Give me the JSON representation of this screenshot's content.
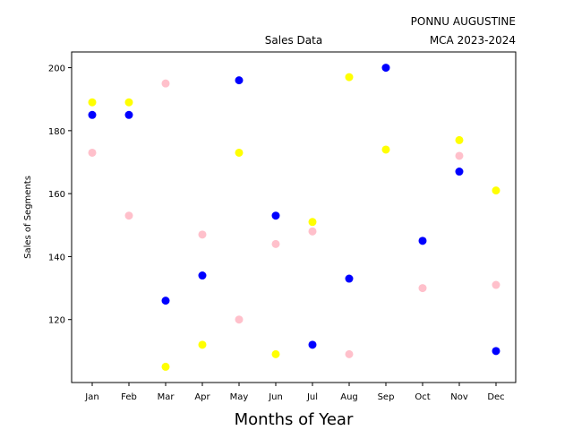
{
  "chart_data": {
    "type": "scatter",
    "title": "Sales Data",
    "title_right": [
      "PONNU AUGUSTINE",
      "MCA 2023-2024"
    ],
    "xlabel": "Months of Year",
    "ylabel": "Sales of Segments",
    "categories": [
      "Jan",
      "Feb",
      "Mar",
      "Apr",
      "May",
      "Jun",
      "Jul",
      "Aug",
      "Sep",
      "Oct",
      "Nov",
      "Dec"
    ],
    "ylim": [
      100,
      205
    ],
    "yticks": [
      120,
      140,
      160,
      180,
      200
    ],
    "grid": false,
    "series": [
      {
        "color": "#0000ff",
        "values": [
          185,
          185,
          126,
          134,
          196,
          153,
          112,
          133,
          200,
          145,
          167,
          110
        ]
      },
      {
        "color": "#ffff00",
        "values": [
          189,
          189,
          105,
          112,
          173,
          109,
          151,
          197,
          174,
          null,
          177,
          161
        ]
      },
      {
        "color": "#ffc0cb",
        "values": [
          173,
          153,
          195,
          147,
          120,
          144,
          148,
          109,
          null,
          130,
          172,
          131
        ]
      }
    ]
  }
}
